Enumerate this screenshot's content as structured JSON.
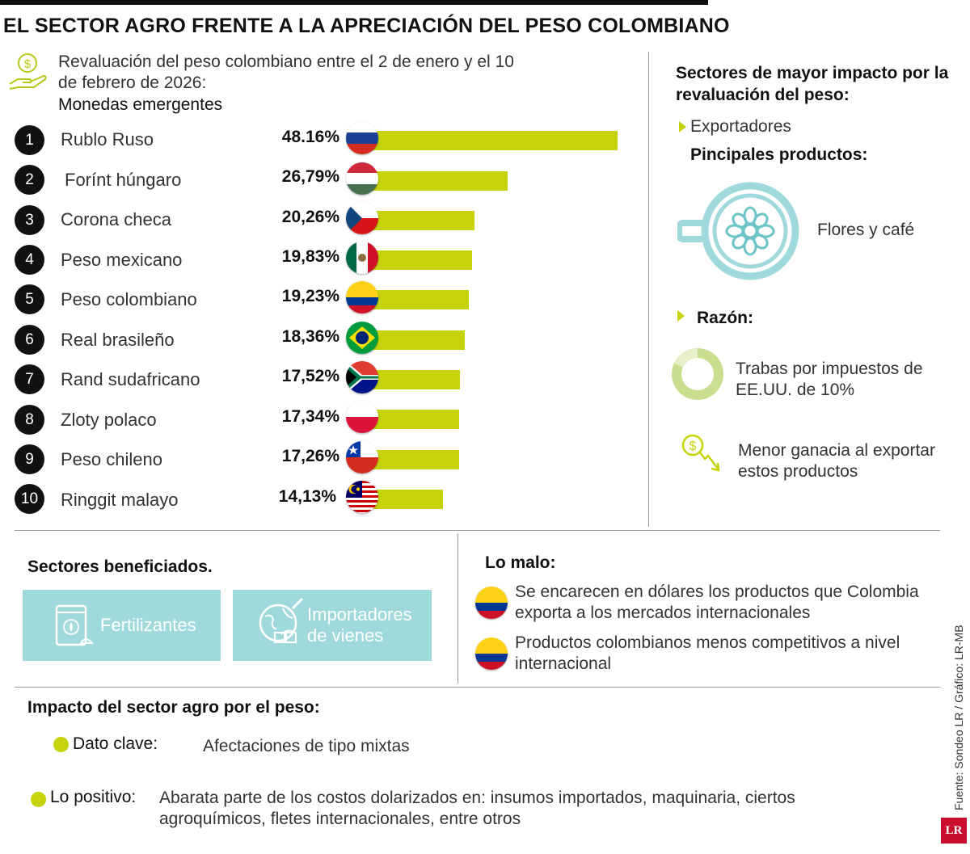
{
  "title": "EL SECTOR AGRO FRENTE A LA APRECIACIÓN DEL PESO COLOMBIANO",
  "subtitle": "Revaluación del peso colombiano entre el 2 de enero y el 10 de febrero de 2026:",
  "chart_data": {
    "type": "bar",
    "orientation": "horizontal",
    "title": "Monedas emergentes",
    "categories": [
      "Rublo Ruso",
      "Forínt húngaro",
      "Corona checa",
      "Peso mexicano",
      "Peso colombiano",
      "Real brasileño",
      "Rand sudafricano",
      "Zloty polaco",
      "Peso chileno",
      "Ringgit malayo"
    ],
    "ranks": [
      "1",
      "2",
      "3",
      "4",
      "5",
      "6",
      "7",
      "8",
      "9",
      "10"
    ],
    "value_labels": [
      "48.16%",
      "26,79%",
      "20,26%",
      "19,83%",
      "19,23%",
      "18,36%",
      "17,52%",
      "17,34%",
      "17,26%",
      "14,13%"
    ],
    "values": [
      48.16,
      26.79,
      20.26,
      19.83,
      19.23,
      18.36,
      17.52,
      17.34,
      17.26,
      14.13
    ],
    "flags": [
      "russia",
      "hungary",
      "czech-republic",
      "mexico",
      "colombia",
      "brazil",
      "south-africa",
      "poland",
      "chile",
      "malaysia"
    ],
    "bar_color": "#c6d30a"
  },
  "right_panel": {
    "heading": "Sectores de mayor impacto por la revaluación del peso:",
    "exportadores": "Exportadores",
    "products_heading": "Pincipales productos:",
    "products": "Flores y café",
    "razon": "Razón:",
    "reason_1": "Trabas por impuestos de EE.UU. de 10%",
    "reason_2": "Menor ganacia al exportar estos productos",
    "icons": [
      "coffee-flower-icon",
      "donut-icon",
      "dollar-down-icon"
    ]
  },
  "beneficiados": {
    "heading": "Sectores beneficiados.",
    "items": [
      "Fertilizantes",
      "Importadores de viene"
    ],
    "items_extra": [
      "s"
    ],
    "box_color": "#9fd9dc"
  },
  "lo_malo": {
    "heading": "Lo malo:",
    "items": [
      "Se encarecen en dólares los productos que Colombia exporta a los mercados internacionales",
      "Productos colombianos menos competitivos a nivel internacional"
    ]
  },
  "impacto": {
    "heading": "Impacto del sector agro por el peso:",
    "items": [
      {
        "label": "Dato clave:",
        "text": "Afectaciones de tipo mixtas"
      },
      {
        "label": "Lo positivo:",
        "text": "Abarata parte de los costos dolarizados en: insumos importados, maquinaria, ciertos agroquímicos, fletes internacionales, entre otros"
      }
    ]
  },
  "source": "Fuente: Sondeo LR / Gráfico: LR-MB",
  "logo": "LR",
  "colors": {
    "accent_lime": "#c6d30a",
    "teal": "#9fd9dc",
    "icon_teal": "#6cc3c8"
  }
}
